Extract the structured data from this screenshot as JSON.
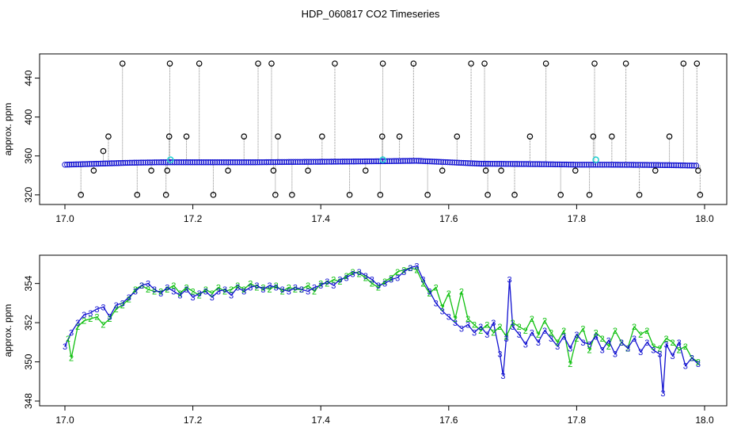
{
  "title": "HDP_060817  CO2 Timeseries",
  "colors": {
    "axis": "#000000",
    "blue": "#1010d0",
    "green": "#10c010",
    "cyan": "#20d0d0",
    "gray": "#888888"
  },
  "chart_data": [
    {
      "type": "scatter",
      "ylabel": "approx. ppm",
      "xlim": [
        17.0,
        18.0
      ],
      "ylim": [
        315,
        460
      ],
      "xticks": [
        "17.0",
        "17.2",
        "17.4",
        "17.6",
        "17.8",
        "18.0"
      ],
      "yticks": [
        "320",
        "360",
        "400",
        "440"
      ],
      "baseline": [
        [
          17.0,
          351
        ],
        [
          17.05,
          352
        ],
        [
          17.1,
          353
        ],
        [
          17.15,
          353.5
        ],
        [
          17.2,
          353.5
        ],
        [
          17.25,
          353.5
        ],
        [
          17.3,
          353.5
        ],
        [
          17.35,
          353.8
        ],
        [
          17.4,
          354
        ],
        [
          17.45,
          354.3
        ],
        [
          17.5,
          354.6
        ],
        [
          17.55,
          355
        ],
        [
          17.6,
          353.5
        ],
        [
          17.65,
          352
        ],
        [
          17.7,
          351.8
        ],
        [
          17.75,
          351.5
        ],
        [
          17.8,
          351
        ],
        [
          17.85,
          351
        ],
        [
          17.9,
          350.8
        ],
        [
          17.95,
          350.5
        ],
        [
          17.99,
          350
        ]
      ],
      "outliers": [
        [
          17.025,
          320
        ],
        [
          17.045,
          345
        ],
        [
          17.06,
          365
        ],
        [
          17.068,
          380
        ],
        [
          17.09,
          455
        ],
        [
          17.113,
          320
        ],
        [
          17.135,
          345
        ],
        [
          17.158,
          320
        ],
        [
          17.16,
          345
        ],
        [
          17.163,
          380
        ],
        [
          17.164,
          455
        ],
        [
          17.19,
          380
        ],
        [
          17.21,
          455
        ],
        [
          17.232,
          320
        ],
        [
          17.255,
          345
        ],
        [
          17.28,
          380
        ],
        [
          17.302,
          455
        ],
        [
          17.323,
          455
        ],
        [
          17.326,
          345
        ],
        [
          17.329,
          320
        ],
        [
          17.333,
          380
        ],
        [
          17.355,
          320
        ],
        [
          17.38,
          345
        ],
        [
          17.402,
          380
        ],
        [
          17.422,
          455
        ],
        [
          17.445,
          320
        ],
        [
          17.47,
          345
        ],
        [
          17.493,
          320
        ],
        [
          17.496,
          380
        ],
        [
          17.497,
          455
        ],
        [
          17.523,
          380
        ],
        [
          17.545,
          455
        ],
        [
          17.567,
          320
        ],
        [
          17.59,
          345
        ],
        [
          17.613,
          380
        ],
        [
          17.635,
          455
        ],
        [
          17.656,
          455
        ],
        [
          17.658,
          345
        ],
        [
          17.661,
          320
        ],
        [
          17.682,
          345
        ],
        [
          17.703,
          320
        ],
        [
          17.727,
          380
        ],
        [
          17.752,
          455
        ],
        [
          17.775,
          320
        ],
        [
          17.798,
          345
        ],
        [
          17.82,
          320
        ],
        [
          17.826,
          380
        ],
        [
          17.828,
          455
        ],
        [
          17.855,
          380
        ],
        [
          17.877,
          455
        ],
        [
          17.898,
          320
        ],
        [
          17.923,
          345
        ],
        [
          17.945,
          380
        ],
        [
          17.967,
          455
        ],
        [
          17.988,
          455
        ],
        [
          17.99,
          345
        ],
        [
          17.993,
          320
        ]
      ]
    },
    {
      "type": "line",
      "ylabel": "approx. ppm",
      "xlim": [
        17.0,
        18.0
      ],
      "ylim": [
        348,
        355.2
      ],
      "xticks": [
        "17.0",
        "17.2",
        "17.4",
        "17.6",
        "17.8",
        "18.0"
      ],
      "yticks": [
        "348",
        "350",
        "352",
        "354"
      ],
      "series": [
        {
          "name": "3",
          "points": [
            [
              17.0,
              350.8
            ],
            [
              17.01,
              351.5
            ],
            [
              17.02,
              352.0
            ],
            [
              17.03,
              352.4
            ],
            [
              17.04,
              352.5
            ],
            [
              17.05,
              352.7
            ],
            [
              17.06,
              352.8
            ],
            [
              17.07,
              352.3
            ],
            [
              17.08,
              352.9
            ],
            [
              17.09,
              353.0
            ],
            [
              17.1,
              353.3
            ],
            [
              17.11,
              353.6
            ],
            [
              17.12,
              353.9
            ],
            [
              17.13,
              354.0
            ],
            [
              17.14,
              353.7
            ],
            [
              17.15,
              353.5
            ],
            [
              17.16,
              353.8
            ],
            [
              17.17,
              353.6
            ],
            [
              17.18,
              353.4
            ],
            [
              17.19,
              353.7
            ],
            [
              17.2,
              353.3
            ],
            [
              17.21,
              353.5
            ],
            [
              17.22,
              353.6
            ],
            [
              17.23,
              353.3
            ],
            [
              17.24,
              353.6
            ],
            [
              17.25,
              353.7
            ],
            [
              17.26,
              353.4
            ],
            [
              17.27,
              353.8
            ],
            [
              17.28,
              353.6
            ],
            [
              17.29,
              353.8
            ],
            [
              17.3,
              353.9
            ],
            [
              17.31,
              353.7
            ],
            [
              17.32,
              353.9
            ],
            [
              17.33,
              353.8
            ],
            [
              17.34,
              353.7
            ],
            [
              17.35,
              353.6
            ],
            [
              17.36,
              353.8
            ],
            [
              17.37,
              353.7
            ],
            [
              17.38,
              353.6
            ],
            [
              17.39,
              353.8
            ],
            [
              17.4,
              353.9
            ],
            [
              17.41,
              354.1
            ],
            [
              17.42,
              353.9
            ],
            [
              17.43,
              354.2
            ],
            [
              17.44,
              354.3
            ],
            [
              17.45,
              354.5
            ],
            [
              17.46,
              354.6
            ],
            [
              17.47,
              354.4
            ],
            [
              17.48,
              354.2
            ],
            [
              17.49,
              353.9
            ],
            [
              17.5,
              354.0
            ],
            [
              17.51,
              354.2
            ],
            [
              17.52,
              354.3
            ],
            [
              17.53,
              354.6
            ],
            [
              17.54,
              354.8
            ],
            [
              17.55,
              354.9
            ],
            [
              17.56,
              354.2
            ],
            [
              17.57,
              353.6
            ],
            [
              17.58,
              353.0
            ],
            [
              17.59,
              352.6
            ],
            [
              17.6,
              352.3
            ],
            [
              17.61,
              352.0
            ],
            [
              17.62,
              351.7
            ],
            [
              17.63,
              351.9
            ],
            [
              17.64,
              351.5
            ],
            [
              17.65,
              351.8
            ],
            [
              17.66,
              351.4
            ],
            [
              17.67,
              352.0
            ],
            [
              17.68,
              350.4
            ],
            [
              17.685,
              349.3
            ],
            [
              17.69,
              351.2
            ],
            [
              17.695,
              354.2
            ],
            [
              17.7,
              351.8
            ],
            [
              17.71,
              351.4
            ],
            [
              17.72,
              350.9
            ],
            [
              17.73,
              351.5
            ],
            [
              17.74,
              351.0
            ],
            [
              17.75,
              351.6
            ],
            [
              17.76,
              351.2
            ],
            [
              17.77,
              350.8
            ],
            [
              17.78,
              351.3
            ],
            [
              17.79,
              350.7
            ],
            [
              17.8,
              351.4
            ],
            [
              17.81,
              351.0
            ],
            [
              17.82,
              350.9
            ],
            [
              17.83,
              351.3
            ],
            [
              17.84,
              350.6
            ],
            [
              17.85,
              351.1
            ],
            [
              17.86,
              350.4
            ],
            [
              17.87,
              351.0
            ],
            [
              17.88,
              350.7
            ],
            [
              17.89,
              351.2
            ],
            [
              17.9,
              350.5
            ],
            [
              17.91,
              351.0
            ],
            [
              17.92,
              350.6
            ],
            [
              17.93,
              350.4
            ],
            [
              17.935,
              348.4
            ],
            [
              17.94,
              350.9
            ],
            [
              17.95,
              350.3
            ],
            [
              17.96,
              351.0
            ],
            [
              17.97,
              349.8
            ],
            [
              17.98,
              350.2
            ],
            [
              17.99,
              349.9
            ]
          ]
        },
        {
          "name": "2",
          "points": [
            [
              17.005,
              351.2
            ],
            [
              17.01,
              350.2
            ],
            [
              17.02,
              351.8
            ],
            [
              17.03,
              352.1
            ],
            [
              17.04,
              352.2
            ],
            [
              17.05,
              352.3
            ],
            [
              17.06,
              351.9
            ],
            [
              17.07,
              352.2
            ],
            [
              17.08,
              352.7
            ],
            [
              17.09,
              352.9
            ],
            [
              17.1,
              353.2
            ],
            [
              17.11,
              353.7
            ],
            [
              17.12,
              353.9
            ],
            [
              17.13,
              353.7
            ],
            [
              17.14,
              353.6
            ],
            [
              17.15,
              353.6
            ],
            [
              17.16,
              353.7
            ],
            [
              17.17,
              353.9
            ],
            [
              17.18,
              353.5
            ],
            [
              17.19,
              353.8
            ],
            [
              17.2,
              353.6
            ],
            [
              17.21,
              353.4
            ],
            [
              17.22,
              353.7
            ],
            [
              17.23,
              353.5
            ],
            [
              17.24,
              353.8
            ],
            [
              17.25,
              353.6
            ],
            [
              17.26,
              353.7
            ],
            [
              17.27,
              353.9
            ],
            [
              17.28,
              353.7
            ],
            [
              17.29,
              354.0
            ],
            [
              17.3,
              353.8
            ],
            [
              17.31,
              353.8
            ],
            [
              17.32,
              353.7
            ],
            [
              17.33,
              353.9
            ],
            [
              17.34,
              353.6
            ],
            [
              17.35,
              353.8
            ],
            [
              17.36,
              353.7
            ],
            [
              17.37,
              353.7
            ],
            [
              17.38,
              353.9
            ],
            [
              17.39,
              353.6
            ],
            [
              17.4,
              354.0
            ],
            [
              17.41,
              354.0
            ],
            [
              17.42,
              354.2
            ],
            [
              17.43,
              354.1
            ],
            [
              17.44,
              354.4
            ],
            [
              17.45,
              354.6
            ],
            [
              17.46,
              354.5
            ],
            [
              17.47,
              354.3
            ],
            [
              17.48,
              354.0
            ],
            [
              17.49,
              353.8
            ],
            [
              17.5,
              354.1
            ],
            [
              17.51,
              354.3
            ],
            [
              17.52,
              354.6
            ],
            [
              17.53,
              354.7
            ],
            [
              17.54,
              354.8
            ],
            [
              17.55,
              354.7
            ],
            [
              17.56,
              354.0
            ],
            [
              17.57,
              353.5
            ],
            [
              17.58,
              353.8
            ],
            [
              17.59,
              352.8
            ],
            [
              17.6,
              353.5
            ],
            [
              17.61,
              352.2
            ],
            [
              17.62,
              353.6
            ],
            [
              17.63,
              352.2
            ],
            [
              17.64,
              351.9
            ],
            [
              17.65,
              351.6
            ],
            [
              17.66,
              351.9
            ],
            [
              17.67,
              351.5
            ],
            [
              17.68,
              351.8
            ],
            [
              17.69,
              351.3
            ],
            [
              17.7,
              352.0
            ],
            [
              17.71,
              351.8
            ],
            [
              17.72,
              351.6
            ],
            [
              17.73,
              352.2
            ],
            [
              17.74,
              351.4
            ],
            [
              17.75,
              352.1
            ],
            [
              17.76,
              351.5
            ],
            [
              17.77,
              351.0
            ],
            [
              17.78,
              351.6
            ],
            [
              17.79,
              349.9
            ],
            [
              17.8,
              351.2
            ],
            [
              17.81,
              351.7
            ],
            [
              17.82,
              350.6
            ],
            [
              17.83,
              351.5
            ],
            [
              17.84,
              351.2
            ],
            [
              17.85,
              350.8
            ],
            [
              17.86,
              351.6
            ],
            [
              17.87,
              351.0
            ],
            [
              17.88,
              350.7
            ],
            [
              17.89,
              351.8
            ],
            [
              17.9,
              351.4
            ],
            [
              17.91,
              351.6
            ],
            [
              17.92,
              350.8
            ],
            [
              17.93,
              350.7
            ],
            [
              17.94,
              351.2
            ],
            [
              17.95,
              351.0
            ],
            [
              17.96,
              350.6
            ],
            [
              17.97,
              350.8
            ],
            [
              17.98,
              350.2
            ],
            [
              17.99,
              350.0
            ]
          ]
        }
      ]
    }
  ]
}
